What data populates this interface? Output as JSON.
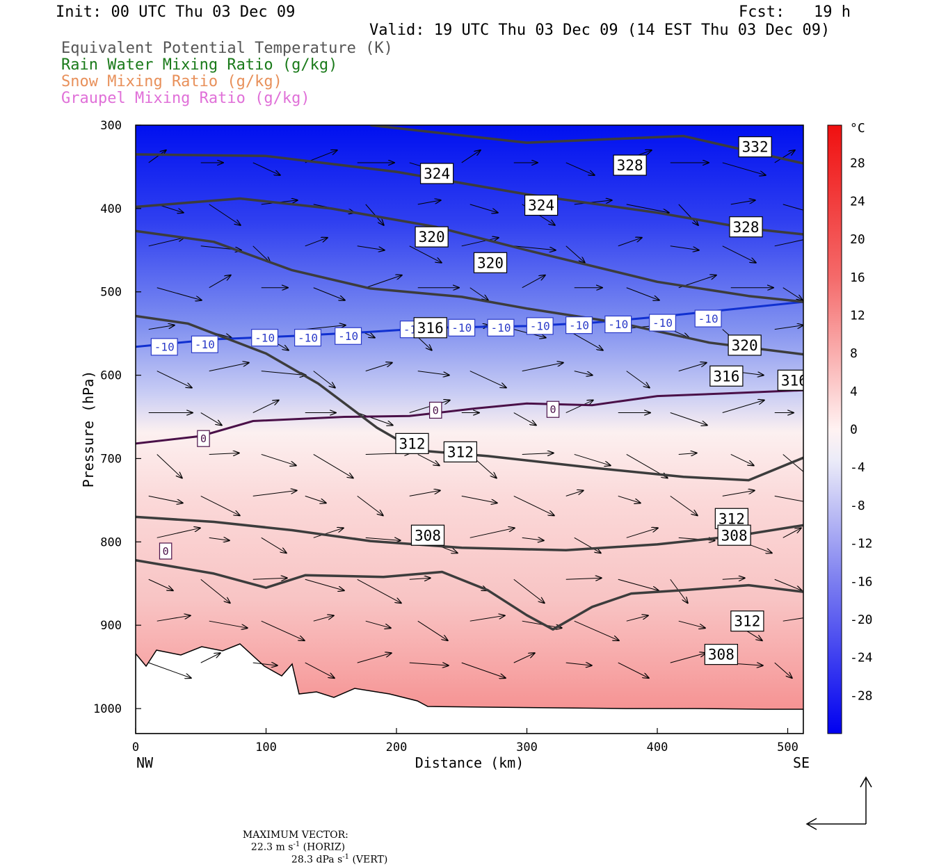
{
  "header": {
    "init": "Init: 00 UTC Thu 03 Dec 09",
    "fcst_label": "Fcst:",
    "fcst_value": "19 h",
    "valid": "Valid: 19 UTC Thu 03 Dec 09 (14 EST Thu 03 Dec 09)",
    "legend": [
      {
        "text": "Equivalent Potential Temperature (K)",
        "color": "#555555"
      },
      {
        "text": "Rain Water Mixing Ratio (g/kg)",
        "color": "#1a7a1a"
      },
      {
        "text": "Snow Mixing Ratio (g/kg)",
        "color": "#e8905a"
      },
      {
        "text": "Graupel Mixing Ratio (g/kg)",
        "color": "#e070d8"
      }
    ]
  },
  "footer": {
    "max_vector_label": "MAXIMUM VECTOR:",
    "horiz_value": "22.3 m s",
    "horiz_exp": "-1",
    "horiz_tag": "(HORIZ)",
    "vert_value": "28.3 dPa s",
    "vert_exp": "-1",
    "vert_tag": "(VERT)"
  },
  "chart_data": {
    "type": "cross-section",
    "xlabel": "Distance (km)",
    "ylabel": "Pressure (hPa)",
    "x_ticks": [
      0,
      100,
      200,
      300,
      400,
      500
    ],
    "y_ticks": [
      300,
      400,
      500,
      600,
      700,
      800,
      900,
      1000
    ],
    "xlim": [
      0,
      512
    ],
    "ylim": [
      300,
      1030
    ],
    "x_endpoint_labels": {
      "left": "NW",
      "right": "SE"
    },
    "colorbar": {
      "unit": "°C",
      "tick_labels": [
        28,
        24,
        20,
        16,
        12,
        8,
        4,
        0,
        -4,
        -8,
        -12,
        -16,
        -20,
        -24,
        -28
      ],
      "range": [
        -32,
        32
      ]
    },
    "theta_e_contours": [
      {
        "level": 332,
        "points": [
          [
            180,
            300
          ],
          [
            300,
            321
          ],
          [
            420,
            313
          ],
          [
            512,
            346
          ]
        ],
        "labels": [
          [
            475,
            326
          ]
        ]
      },
      {
        "level": 328,
        "points": [
          [
            0,
            335
          ],
          [
            100,
            337
          ],
          [
            200,
            356
          ],
          [
            300,
            383
          ],
          [
            400,
            405
          ],
          [
            470,
            424
          ],
          [
            512,
            431
          ]
        ],
        "labels": [
          [
            379,
            348
          ],
          [
            468,
            422
          ]
        ]
      },
      {
        "level": 324,
        "points": [
          [
            0,
            398
          ],
          [
            80,
            388
          ],
          [
            150,
            400
          ],
          [
            230,
            422
          ],
          [
            300,
            450
          ],
          [
            400,
            488
          ],
          [
            470,
            505
          ],
          [
            512,
            512
          ]
        ],
        "labels": [
          [
            231,
            358
          ],
          [
            311,
            396
          ]
        ]
      },
      {
        "level": 320,
        "points": [
          [
            0,
            427
          ],
          [
            60,
            440
          ],
          [
            120,
            474
          ],
          [
            180,
            496
          ],
          [
            250,
            506
          ],
          [
            300,
            520
          ],
          [
            370,
            537
          ],
          [
            440,
            561
          ],
          [
            512,
            575
          ]
        ],
        "labels": [
          [
            227,
            434
          ],
          [
            272,
            465
          ],
          [
            467,
            564
          ]
        ]
      },
      {
        "level": 316,
        "points": [
          [
            0,
            529
          ],
          [
            40,
            538
          ],
          [
            100,
            574
          ],
          [
            140,
            610
          ],
          [
            185,
            663
          ],
          [
            215,
            690
          ],
          [
            270,
            697
          ],
          [
            350,
            711
          ],
          [
            420,
            722
          ],
          [
            470,
            726
          ],
          [
            512,
            699
          ]
        ],
        "labels": [
          [
            226,
            543
          ],
          [
            453,
            601
          ],
          [
            505,
            606
          ]
        ]
      },
      {
        "level": 312,
        "points": [
          [
            0,
            770
          ],
          [
            60,
            776
          ],
          [
            120,
            786
          ],
          [
            180,
            799
          ],
          [
            250,
            807
          ],
          [
            330,
            810
          ],
          [
            400,
            803
          ],
          [
            460,
            793
          ],
          [
            512,
            780
          ]
        ],
        "labels": [
          [
            212,
            682
          ],
          [
            249,
            692
          ],
          [
            457,
            772
          ],
          [
            469,
            895
          ]
        ]
      },
      {
        "level": 308,
        "points": [
          [
            0,
            822
          ],
          [
            60,
            838
          ],
          [
            100,
            855
          ],
          [
            130,
            840
          ],
          [
            190,
            842
          ],
          [
            235,
            836
          ],
          [
            270,
            858
          ],
          [
            300,
            888
          ],
          [
            320,
            905
          ],
          [
            350,
            878
          ],
          [
            380,
            862
          ],
          [
            420,
            858
          ],
          [
            470,
            852
          ],
          [
            512,
            860
          ]
        ],
        "labels": [
          [
            224,
            792
          ],
          [
            459,
            792
          ],
          [
            449,
            935
          ]
        ]
      }
    ],
    "isotherms": [
      {
        "level": -10,
        "points": [
          [
            0,
            566
          ],
          [
            60,
            557
          ],
          [
            120,
            553
          ],
          [
            180,
            548
          ],
          [
            230,
            543
          ],
          [
            300,
            541
          ],
          [
            350,
            537
          ],
          [
            400,
            530
          ],
          [
            450,
            522
          ],
          [
            512,
            512
          ]
        ],
        "labels": [
          [
            22,
            566
          ],
          [
            53,
            563
          ],
          [
            99,
            555
          ],
          [
            132,
            555
          ],
          [
            163,
            553
          ],
          [
            213,
            545
          ],
          [
            250,
            543
          ],
          [
            280,
            543
          ],
          [
            310,
            541
          ],
          [
            340,
            540
          ],
          [
            370,
            539
          ],
          [
            404,
            537
          ],
          [
            439,
            532
          ]
        ]
      },
      {
        "level": 0,
        "points": [
          [
            0,
            682
          ],
          [
            50,
            673
          ],
          [
            90,
            655
          ],
          [
            160,
            650
          ],
          [
            210,
            649
          ],
          [
            260,
            640
          ],
          [
            300,
            634
          ],
          [
            350,
            636
          ],
          [
            400,
            625
          ],
          [
            450,
            622
          ],
          [
            512,
            618
          ]
        ],
        "labels": [
          [
            52,
            676
          ],
          [
            230,
            642
          ],
          [
            320,
            641
          ],
          [
            23,
            811
          ]
        ]
      }
    ],
    "wind_vectors_note": "Cross-section wind vectors (horizontal/vertical); max 22.3 m/s horiz, 28.3 dPa/s vert"
  }
}
